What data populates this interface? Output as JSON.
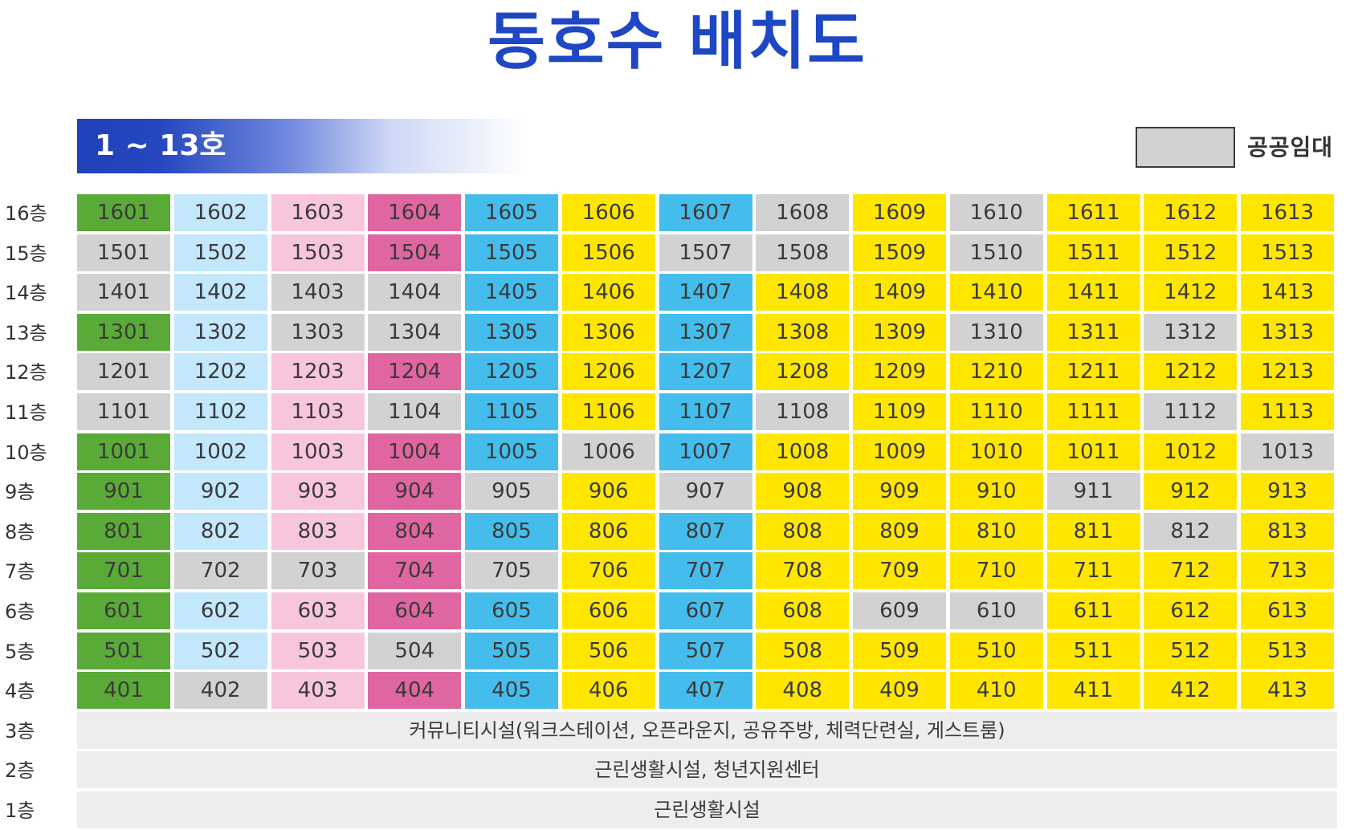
{
  "title": "동호수 배치도",
  "banner": "1 ~ 13호",
  "legend": {
    "label": "공공임대",
    "color": "#d2d2d2"
  },
  "palette": {
    "G": "#5aaa38",
    "L": "#c3e7fb",
    "P": "#f8c6dc",
    "M": "#df66a0",
    "B": "#45bdec",
    "Y": "#ffe600",
    "R": "#d2d2d2"
  },
  "rows": [
    {
      "floor": "16층",
      "units": [
        "1601",
        "1602",
        "1603",
        "1604",
        "1605",
        "1606",
        "1607",
        "1608",
        "1609",
        "1610",
        "1611",
        "1612",
        "1613"
      ],
      "colors": [
        "G",
        "L",
        "P",
        "M",
        "B",
        "Y",
        "B",
        "R",
        "Y",
        "R",
        "Y",
        "Y",
        "Y"
      ]
    },
    {
      "floor": "15층",
      "units": [
        "1501",
        "1502",
        "1503",
        "1504",
        "1505",
        "1506",
        "1507",
        "1508",
        "1509",
        "1510",
        "1511",
        "1512",
        "1513"
      ],
      "colors": [
        "R",
        "L",
        "P",
        "M",
        "B",
        "Y",
        "R",
        "R",
        "Y",
        "R",
        "Y",
        "Y",
        "Y"
      ]
    },
    {
      "floor": "14층",
      "units": [
        "1401",
        "1402",
        "1403",
        "1404",
        "1405",
        "1406",
        "1407",
        "1408",
        "1409",
        "1410",
        "1411",
        "1412",
        "1413"
      ],
      "colors": [
        "R",
        "L",
        "R",
        "R",
        "B",
        "Y",
        "B",
        "Y",
        "Y",
        "Y",
        "Y",
        "Y",
        "Y"
      ]
    },
    {
      "floor": "13층",
      "units": [
        "1301",
        "1302",
        "1303",
        "1304",
        "1305",
        "1306",
        "1307",
        "1308",
        "1309",
        "1310",
        "1311",
        "1312",
        "1313"
      ],
      "colors": [
        "G",
        "L",
        "R",
        "R",
        "B",
        "Y",
        "B",
        "Y",
        "Y",
        "R",
        "Y",
        "R",
        "Y"
      ]
    },
    {
      "floor": "12층",
      "units": [
        "1201",
        "1202",
        "1203",
        "1204",
        "1205",
        "1206",
        "1207",
        "1208",
        "1209",
        "1210",
        "1211",
        "1212",
        "1213"
      ],
      "colors": [
        "R",
        "L",
        "P",
        "M",
        "B",
        "Y",
        "B",
        "Y",
        "Y",
        "Y",
        "Y",
        "Y",
        "Y"
      ]
    },
    {
      "floor": "11층",
      "units": [
        "1101",
        "1102",
        "1103",
        "1104",
        "1105",
        "1106",
        "1107",
        "1108",
        "1109",
        "1110",
        "1111",
        "1112",
        "1113"
      ],
      "colors": [
        "R",
        "L",
        "P",
        "R",
        "B",
        "Y",
        "B",
        "R",
        "Y",
        "Y",
        "Y",
        "R",
        "Y"
      ]
    },
    {
      "floor": "10층",
      "units": [
        "1001",
        "1002",
        "1003",
        "1004",
        "1005",
        "1006",
        "1007",
        "1008",
        "1009",
        "1010",
        "1011",
        "1012",
        "1013"
      ],
      "colors": [
        "G",
        "L",
        "P",
        "M",
        "B",
        "R",
        "B",
        "Y",
        "Y",
        "Y",
        "Y",
        "Y",
        "R"
      ]
    },
    {
      "floor": "9층",
      "units": [
        "901",
        "902",
        "903",
        "904",
        "905",
        "906",
        "907",
        "908",
        "909",
        "910",
        "911",
        "912",
        "913"
      ],
      "colors": [
        "G",
        "L",
        "P",
        "M",
        "R",
        "Y",
        "R",
        "Y",
        "Y",
        "Y",
        "R",
        "Y",
        "Y"
      ]
    },
    {
      "floor": "8층",
      "units": [
        "801",
        "802",
        "803",
        "804",
        "805",
        "806",
        "807",
        "808",
        "809",
        "810",
        "811",
        "812",
        "813"
      ],
      "colors": [
        "G",
        "L",
        "P",
        "M",
        "B",
        "Y",
        "B",
        "Y",
        "Y",
        "Y",
        "Y",
        "R",
        "Y"
      ]
    },
    {
      "floor": "7층",
      "units": [
        "701",
        "702",
        "703",
        "704",
        "705",
        "706",
        "707",
        "708",
        "709",
        "710",
        "711",
        "712",
        "713"
      ],
      "colors": [
        "G",
        "R",
        "R",
        "M",
        "R",
        "Y",
        "B",
        "Y",
        "Y",
        "Y",
        "Y",
        "Y",
        "Y"
      ]
    },
    {
      "floor": "6층",
      "units": [
        "601",
        "602",
        "603",
        "604",
        "605",
        "606",
        "607",
        "608",
        "609",
        "610",
        "611",
        "612",
        "613"
      ],
      "colors": [
        "G",
        "L",
        "P",
        "M",
        "B",
        "Y",
        "B",
        "Y",
        "R",
        "R",
        "Y",
        "Y",
        "Y"
      ]
    },
    {
      "floor": "5층",
      "units": [
        "501",
        "502",
        "503",
        "504",
        "505",
        "506",
        "507",
        "508",
        "509",
        "510",
        "511",
        "512",
        "513"
      ],
      "colors": [
        "G",
        "L",
        "P",
        "R",
        "B",
        "Y",
        "B",
        "Y",
        "Y",
        "Y",
        "Y",
        "Y",
        "Y"
      ]
    },
    {
      "floor": "4층",
      "units": [
        "401",
        "402",
        "403",
        "404",
        "405",
        "406",
        "407",
        "408",
        "409",
        "410",
        "411",
        "412",
        "413"
      ],
      "colors": [
        "G",
        "R",
        "P",
        "M",
        "B",
        "Y",
        "B",
        "Y",
        "Y",
        "Y",
        "Y",
        "Y",
        "Y"
      ]
    }
  ],
  "facilities": [
    {
      "floor": "3층",
      "text": "커뮤니티시설(워크스테이션, 오픈라운지, 공유주방, 체력단련실, 게스트룸)"
    },
    {
      "floor": "2층",
      "text": "근린생활시설, 청년지원센터"
    },
    {
      "floor": "1층",
      "text": "근린생활시설"
    }
  ]
}
